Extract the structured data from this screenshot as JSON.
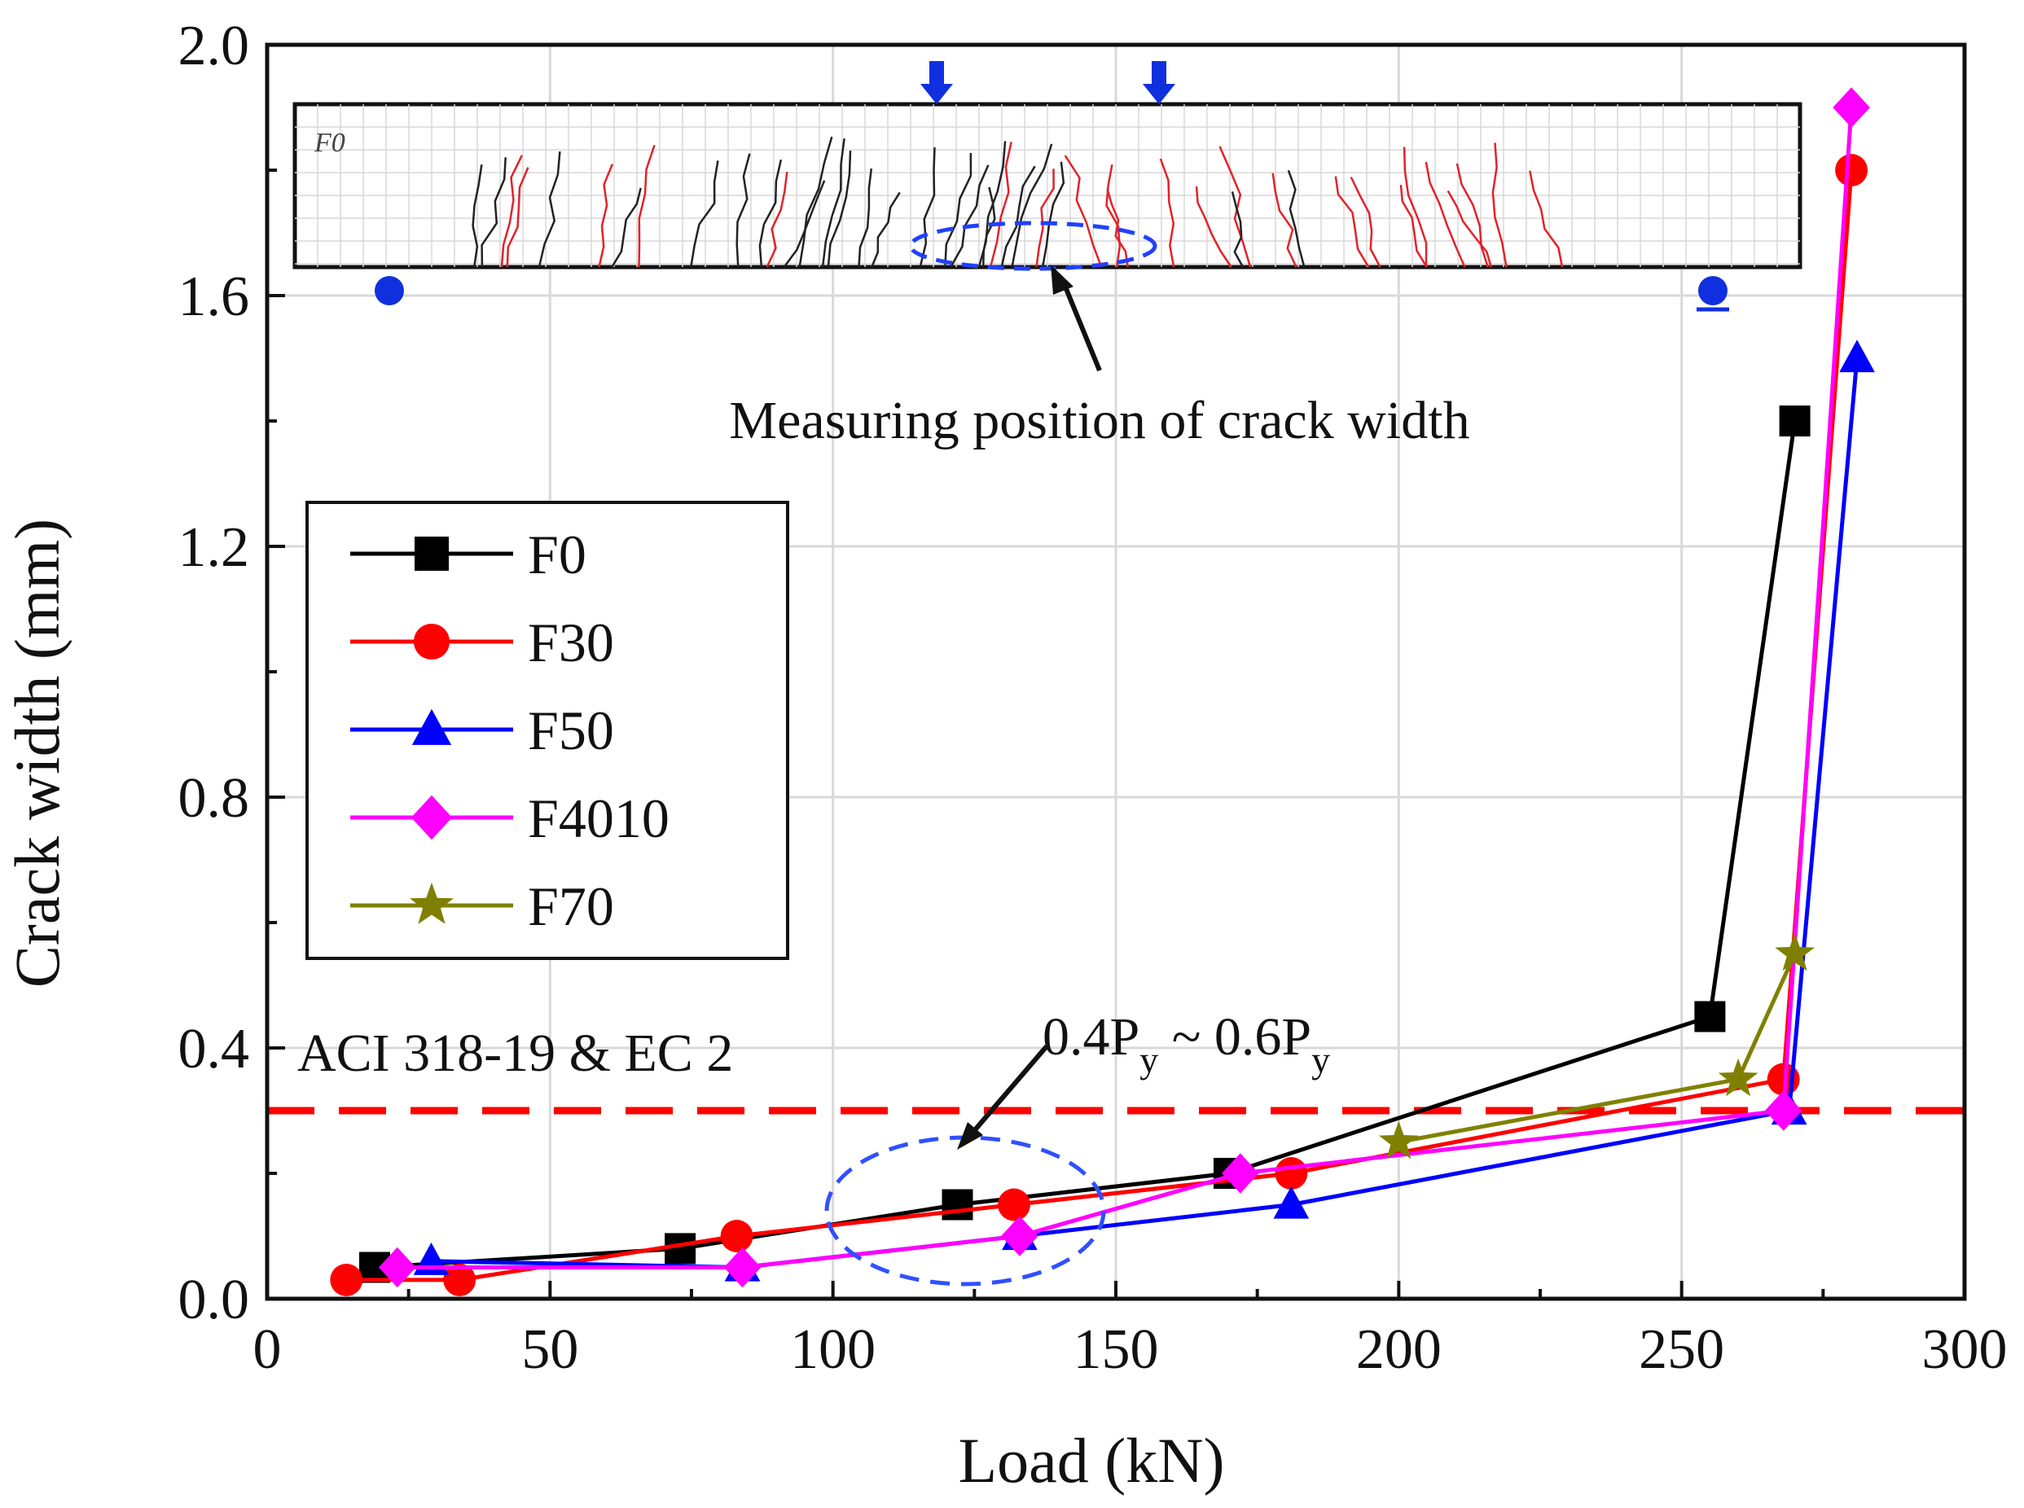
{
  "chart_data": {
    "type": "line",
    "xlabel": "Load (kN)",
    "ylabel": "Crack width (mm)",
    "xlim": [
      0,
      300
    ],
    "ylim": [
      0.0,
      2.0
    ],
    "x_ticks": [
      "0",
      "50",
      "100",
      "150",
      "200",
      "250",
      "300"
    ],
    "y_ticks": [
      "0.0",
      "0.4",
      "0.8",
      "1.2",
      "1.6",
      "2.0"
    ],
    "grid": true,
    "legend_position": "middle-left",
    "series": [
      {
        "name": "F0",
        "color": "#000000",
        "marker": "square",
        "points": [
          [
            19,
            0.05
          ],
          [
            73,
            0.08
          ],
          [
            122,
            0.15
          ],
          [
            170,
            0.2
          ],
          [
            255,
            0.45
          ],
          [
            270,
            1.4
          ]
        ]
      },
      {
        "name": "F30",
        "color": "#ff0000",
        "marker": "circle",
        "points": [
          [
            14,
            0.03
          ],
          [
            34,
            0.03
          ],
          [
            83,
            0.1
          ],
          [
            132,
            0.15
          ],
          [
            181,
            0.2
          ],
          [
            268,
            0.35
          ],
          [
            280,
            1.8
          ]
        ]
      },
      {
        "name": "F50",
        "color": "#0000ff",
        "marker": "triangle",
        "points": [
          [
            29,
            0.06
          ],
          [
            84,
            0.05
          ],
          [
            133,
            0.1
          ],
          [
            181,
            0.15
          ],
          [
            269,
            0.3
          ],
          [
            281,
            1.5
          ]
        ]
      },
      {
        "name": "F4010",
        "color": "#ff00ff",
        "marker": "diamond",
        "points": [
          [
            23,
            0.05
          ],
          [
            84,
            0.05
          ],
          [
            133,
            0.1
          ],
          [
            172,
            0.2
          ],
          [
            268,
            0.3
          ],
          [
            280,
            1.9
          ]
        ]
      },
      {
        "name": "F70",
        "color": "#808000",
        "marker": "star",
        "points": [
          [
            200,
            0.25
          ],
          [
            260,
            0.35
          ],
          [
            270,
            0.55
          ]
        ]
      }
    ],
    "limit_line": {
      "y": 0.3,
      "label": "ACI 318-19 & EC 2",
      "color": "#ff0000"
    },
    "annotations": {
      "range_main": "0.4P",
      "range_sub1": "y",
      "range_sep": " ~ 0.6P",
      "range_sub2": "y",
      "measure": "Measuring position of crack width"
    },
    "inset": {
      "label": "F0"
    }
  }
}
